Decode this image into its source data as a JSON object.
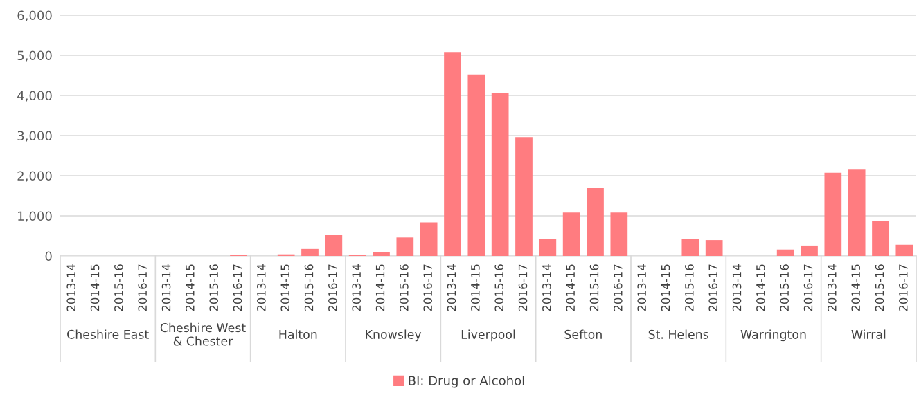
{
  "chart_data": {
    "type": "bar",
    "categories": [
      "2013-14",
      "2014-15",
      "2015-16",
      "2016-17",
      "2013-14",
      "2014-15",
      "2015-16",
      "2016-17",
      "2013-14",
      "2014-15",
      "2015-16",
      "2016-17",
      "2013-14",
      "2014-15",
      "2015-16",
      "2016-17",
      "2013-14",
      "2014-15",
      "2015-16",
      "2016-17",
      "2013-14",
      "2014-15",
      "2015-16",
      "2016-17",
      "2013-14",
      "2014-15",
      "2015-16",
      "2016-17",
      "2013-14",
      "2014-15",
      "2015-16",
      "2016-17",
      "2013-14",
      "2014-15",
      "2015-16",
      "2016-17"
    ],
    "series": [
      {
        "name": "BI: Drug or Alcohol",
        "color": "#ff7c80",
        "values": [
          0,
          0,
          0,
          0,
          0,
          0,
          0,
          20,
          0,
          40,
          175,
          520,
          20,
          90,
          460,
          835,
          5080,
          4520,
          4060,
          2960,
          430,
          1080,
          1690,
          1080,
          0,
          0,
          415,
          395,
          0,
          0,
          160,
          260,
          2075,
          2150,
          870,
          280
        ]
      }
    ],
    "annotations": [
      "Cheshire East",
      "Cheshire West\n& Chester",
      "Halton",
      "Knowsley",
      "Liverpool",
      "Sefton",
      "St. Helens",
      "Warrington",
      "Wirral"
    ],
    "ylim": [
      0,
      6000
    ],
    "yticks": [
      {
        "value": 0,
        "label": "0"
      },
      {
        "value": 1000,
        "label": "1,000"
      },
      {
        "value": 2000,
        "label": "2,000"
      },
      {
        "value": 3000,
        "label": "3,000"
      },
      {
        "value": 4000,
        "label": "4,000"
      },
      {
        "value": 5000,
        "label": "5,000"
      },
      {
        "value": 6000,
        "label": "6,000"
      }
    ],
    "grid": "y",
    "legend": "bottom"
  }
}
